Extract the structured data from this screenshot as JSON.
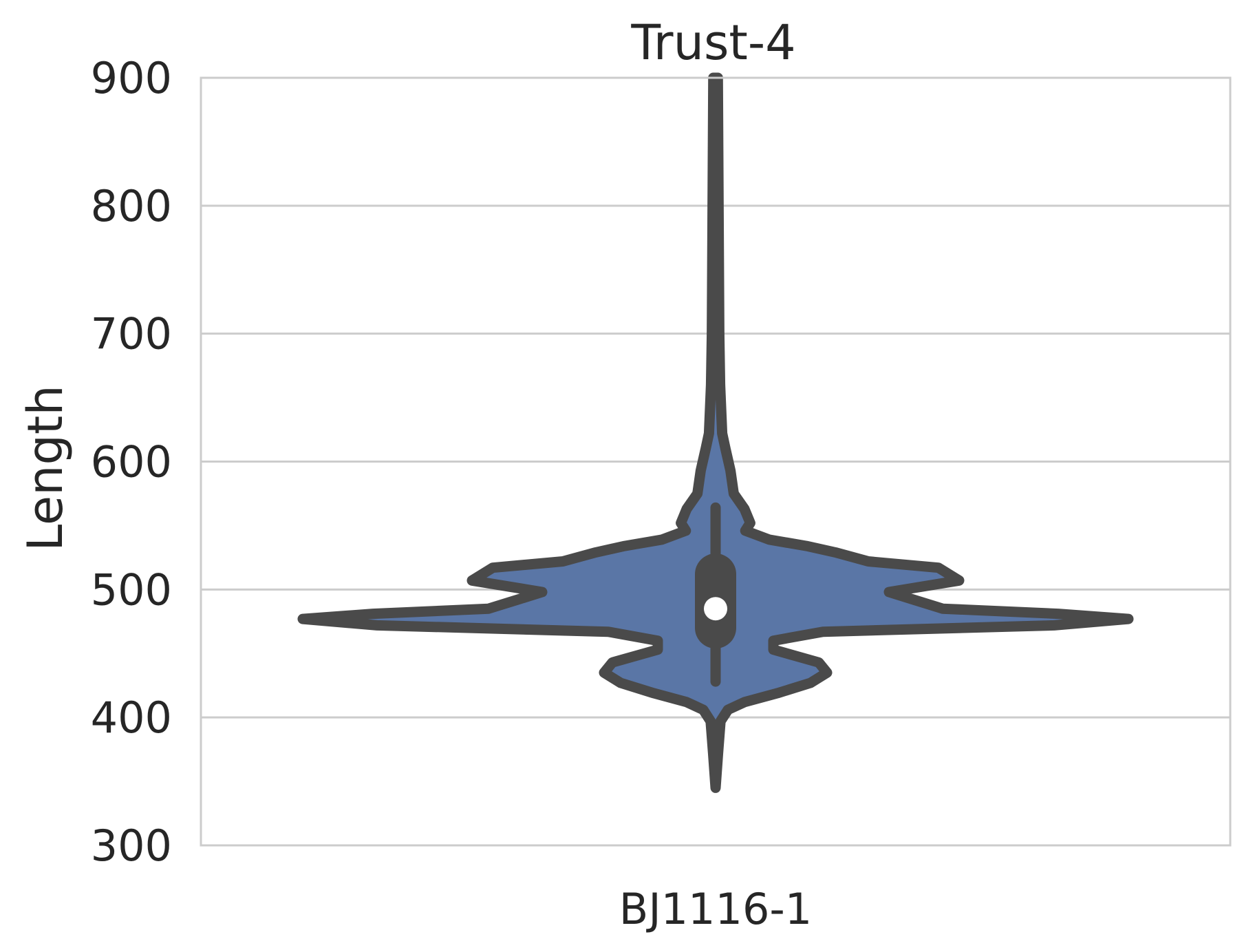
{
  "chart_data": {
    "type": "violin",
    "title": "Trust-4",
    "xlabel": "",
    "ylabel": "Length",
    "categories": [
      "BJ1116-1"
    ],
    "ylim": [
      300,
      900
    ],
    "yticks": [
      300,
      400,
      500,
      600,
      700,
      800,
      900
    ],
    "grid": "horizontal",
    "colors": {
      "fill": "#5a76a6",
      "outline": "#4a4a4a",
      "median": "#ffffff",
      "grid": "#cccccc",
      "frame": "#cccccc"
    },
    "violin": {
      "category": "BJ1116-1",
      "min": 345,
      "max": 900,
      "median": 485,
      "q1": 470,
      "q3": 512,
      "whisker_low": 428,
      "whisker_high": 564,
      "density": [
        {
          "y": 345,
          "w": 0.0
        },
        {
          "y": 372,
          "w": 0.006
        },
        {
          "y": 397,
          "w": 0.012
        },
        {
          "y": 406,
          "w": 0.03
        },
        {
          "y": 412,
          "w": 0.07
        },
        {
          "y": 419,
          "w": 0.15
        },
        {
          "y": 427,
          "w": 0.23
        },
        {
          "y": 435,
          "w": 0.27
        },
        {
          "y": 443,
          "w": 0.25
        },
        {
          "y": 453,
          "w": 0.14
        },
        {
          "y": 460,
          "w": 0.14
        },
        {
          "y": 467,
          "w": 0.26
        },
        {
          "y": 472,
          "w": 0.82
        },
        {
          "y": 477,
          "w": 1.0
        },
        {
          "y": 481,
          "w": 0.83
        },
        {
          "y": 485,
          "w": 0.55
        },
        {
          "y": 492,
          "w": 0.48
        },
        {
          "y": 498,
          "w": 0.42
        },
        {
          "y": 507,
          "w": 0.59
        },
        {
          "y": 517,
          "w": 0.54
        },
        {
          "y": 522,
          "w": 0.37
        },
        {
          "y": 529,
          "w": 0.29
        },
        {
          "y": 534,
          "w": 0.22
        },
        {
          "y": 539,
          "w": 0.13
        },
        {
          "y": 546,
          "w": 0.072
        },
        {
          "y": 552,
          "w": 0.084
        },
        {
          "y": 563,
          "w": 0.07
        },
        {
          "y": 575,
          "w": 0.044
        },
        {
          "y": 593,
          "w": 0.036
        },
        {
          "y": 610,
          "w": 0.024
        },
        {
          "y": 622,
          "w": 0.016
        },
        {
          "y": 660,
          "w": 0.011
        },
        {
          "y": 700,
          "w": 0.009
        },
        {
          "y": 900,
          "w": 0.0055
        }
      ]
    }
  }
}
